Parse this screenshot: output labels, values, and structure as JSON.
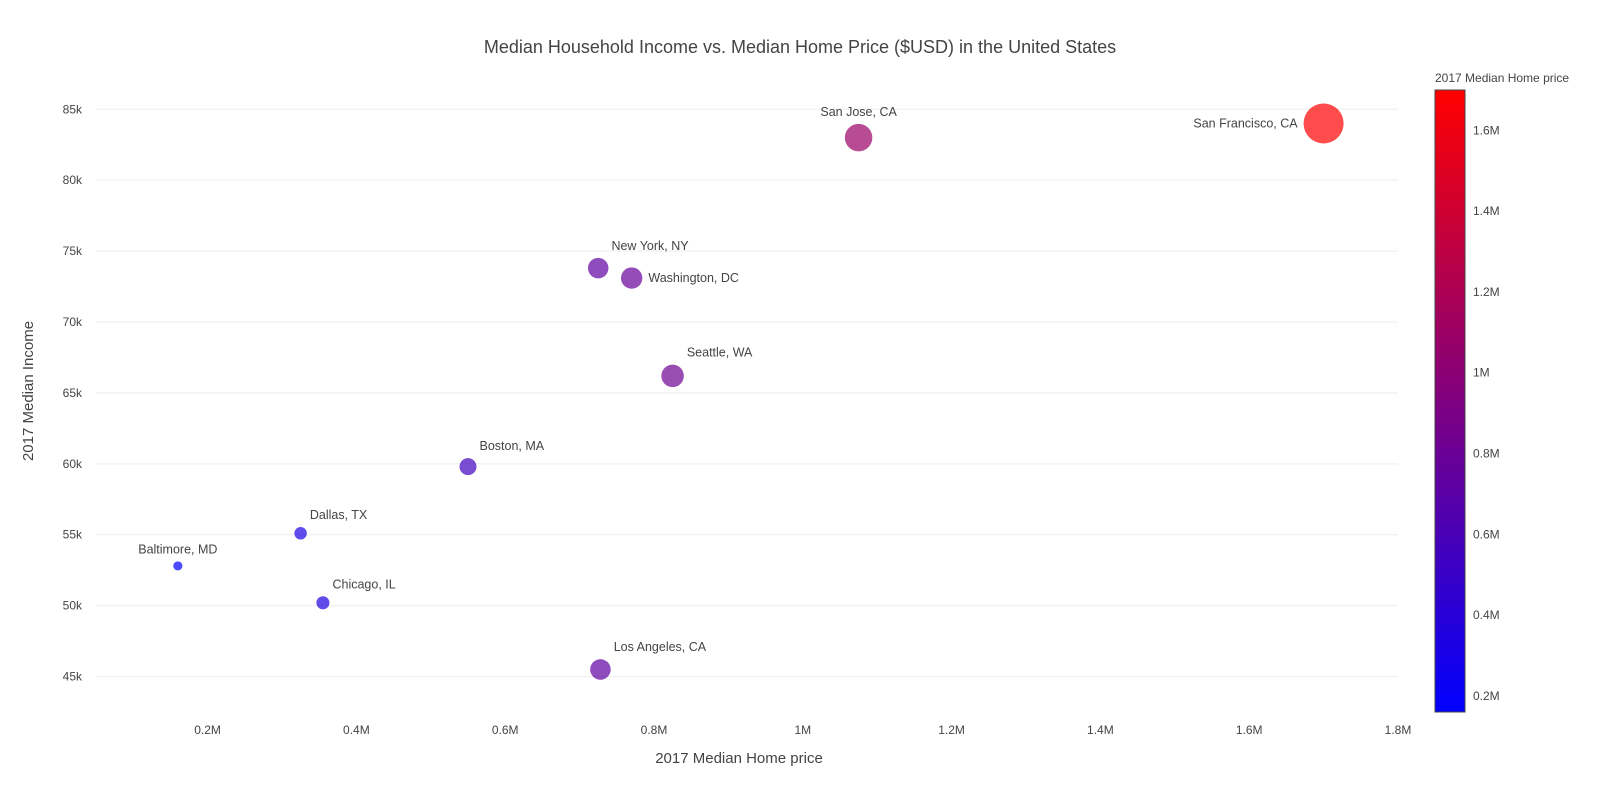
{
  "chart_data": {
    "type": "scatter",
    "title": "Median Household Income vs. Median Home Price ($USD) in the United States",
    "xlabel": "2017 Median Home price",
    "ylabel": "2017 Median Income",
    "xlim": [
      50000,
      1800000
    ],
    "ylim": [
      42500,
      86500
    ],
    "x_ticks": [
      {
        "value": 200000,
        "label": "0.2M"
      },
      {
        "value": 400000,
        "label": "0.4M"
      },
      {
        "value": 600000,
        "label": "0.6M"
      },
      {
        "value": 800000,
        "label": "0.8M"
      },
      {
        "value": 1000000,
        "label": "1M"
      },
      {
        "value": 1200000,
        "label": "1.2M"
      },
      {
        "value": 1400000,
        "label": "1.4M"
      },
      {
        "value": 1600000,
        "label": "1.6M"
      },
      {
        "value": 1800000,
        "label": "1.8M"
      }
    ],
    "y_ticks": [
      {
        "value": 45000,
        "label": "45k"
      },
      {
        "value": 50000,
        "label": "50k"
      },
      {
        "value": 55000,
        "label": "55k"
      },
      {
        "value": 60000,
        "label": "60k"
      },
      {
        "value": 65000,
        "label": "65k"
      },
      {
        "value": 70000,
        "label": "70k"
      },
      {
        "value": 75000,
        "label": "75k"
      },
      {
        "value": 80000,
        "label": "80k"
      },
      {
        "value": 85000,
        "label": "85k"
      }
    ],
    "grid": "horizontal",
    "marker_opacity": 0.7,
    "points": [
      {
        "label": "San Francisco, CA",
        "x": 1700000,
        "y": 84000,
        "text_position": "left"
      },
      {
        "label": "San Jose, CA",
        "x": 1075000,
        "y": 83000,
        "text_position": "top"
      },
      {
        "label": "New York, NY",
        "x": 725000,
        "y": 73800,
        "text_position": "top-right"
      },
      {
        "label": "Washington, DC",
        "x": 770000,
        "y": 73100,
        "text_position": "right"
      },
      {
        "label": "Seattle, WA",
        "x": 825000,
        "y": 66200,
        "text_position": "top-right"
      },
      {
        "label": "Boston, MA",
        "x": 550000,
        "y": 59800,
        "text_position": "top-right"
      },
      {
        "label": "Dallas, TX",
        "x": 325000,
        "y": 55100,
        "text_position": "top-right"
      },
      {
        "label": "Baltimore, MD",
        "x": 160000,
        "y": 52800,
        "text_position": "top"
      },
      {
        "label": "Chicago, IL",
        "x": 355000,
        "y": 50200,
        "text_position": "top-right"
      },
      {
        "label": "Los Angeles, CA",
        "x": 728000,
        "y": 45500,
        "text_position": "top-right"
      }
    ],
    "colorbar": {
      "title": "2017 Median Home price",
      "range": [
        160000,
        1700000
      ],
      "colorscale": [
        "#0000ff",
        "#ff0000"
      ],
      "ticks": [
        {
          "value": 200000,
          "label": "0.2M"
        },
        {
          "value": 400000,
          "label": "0.4M"
        },
        {
          "value": 600000,
          "label": "0.6M"
        },
        {
          "value": 800000,
          "label": "0.8M"
        },
        {
          "value": 1000000,
          "label": "1M"
        },
        {
          "value": 1200000,
          "label": "1.2M"
        },
        {
          "value": 1400000,
          "label": "1.4M"
        },
        {
          "value": 1600000,
          "label": "1.6M"
        }
      ]
    }
  }
}
